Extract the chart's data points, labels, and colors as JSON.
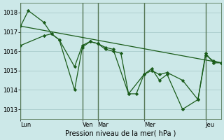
{
  "background_color": "#cce8e8",
  "grid_color": "#aacccc",
  "line_color": "#1a5c1a",
  "marker_color": "#1a5c1a",
  "xlabel": "Pression niveau de la mer( hPa )",
  "ylim": [
    1012.5,
    1018.5
  ],
  "yticks": [
    1013,
    1014,
    1015,
    1016,
    1017,
    1018
  ],
  "xtick_labels": [
    "Lun",
    "Ven",
    "Mar",
    "Mer",
    "Jeu"
  ],
  "xtick_positions": [
    0,
    4,
    5,
    8,
    12
  ],
  "xlim": [
    0,
    13
  ],
  "series1_x": [
    0.0,
    0.5,
    1.5,
    2.0,
    2.5,
    3.5,
    4.0,
    4.5,
    5.0,
    5.5,
    6.0,
    6.5,
    7.0,
    7.5,
    8.0,
    8.5,
    9.0,
    9.5,
    10.5,
    11.5,
    12.0,
    12.5,
    13.0
  ],
  "series1_y": [
    1017.3,
    1018.1,
    1017.5,
    1016.9,
    1016.6,
    1015.2,
    1016.3,
    1016.5,
    1016.4,
    1016.1,
    1016.0,
    1015.9,
    1013.8,
    1013.8,
    1014.8,
    1015.1,
    1014.5,
    1014.8,
    1013.0,
    1013.5,
    1015.9,
    1015.4,
    1015.4
  ],
  "series2_x": [
    0.0,
    1.5,
    2.0,
    2.5,
    3.5,
    4.0,
    4.5,
    5.0,
    5.5,
    6.0,
    7.0,
    8.0,
    8.5,
    9.0,
    9.5,
    10.5,
    11.5,
    12.0,
    12.5,
    13.0
  ],
  "series2_y": [
    1016.3,
    1016.8,
    1016.9,
    1016.6,
    1014.0,
    1016.2,
    1016.5,
    1016.4,
    1016.2,
    1016.1,
    1013.8,
    1014.8,
    1015.0,
    1014.8,
    1014.9,
    1014.5,
    1013.5,
    1015.8,
    1015.5,
    1015.4
  ],
  "trend_x": [
    0.0,
    13.0
  ],
  "trend_y": [
    1017.3,
    1015.4
  ],
  "vline_positions": [
    0,
    4,
    5,
    8,
    12
  ],
  "vline_color": "#557755",
  "xlabel_fontsize": 7,
  "tick_fontsize": 6
}
